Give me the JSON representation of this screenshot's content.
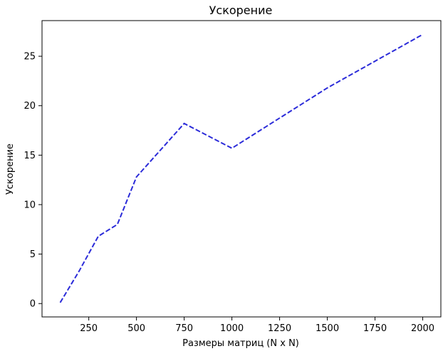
{
  "chart_data": {
    "type": "line",
    "title": "Ускорение",
    "xlabel": "Размеры матриц (N x N)",
    "ylabel": "Ускорение",
    "xlim": [
      5,
      2095
    ],
    "ylim": [
      -1.35,
      28.6
    ],
    "xticks": [
      250,
      500,
      750,
      1000,
      1250,
      1500,
      1750,
      2000
    ],
    "yticks": [
      0,
      5,
      10,
      15,
      20,
      25
    ],
    "grid": false,
    "series": [
      {
        "color": "#2b2bd9",
        "line_style": "dashed",
        "x": [
          100,
          200,
          300,
          400,
          500,
          750,
          1000,
          1500,
          2000
        ],
        "y": [
          0.1,
          3.3,
          6.8,
          8.0,
          12.8,
          18.2,
          15.7,
          21.8,
          27.2
        ]
      }
    ]
  }
}
